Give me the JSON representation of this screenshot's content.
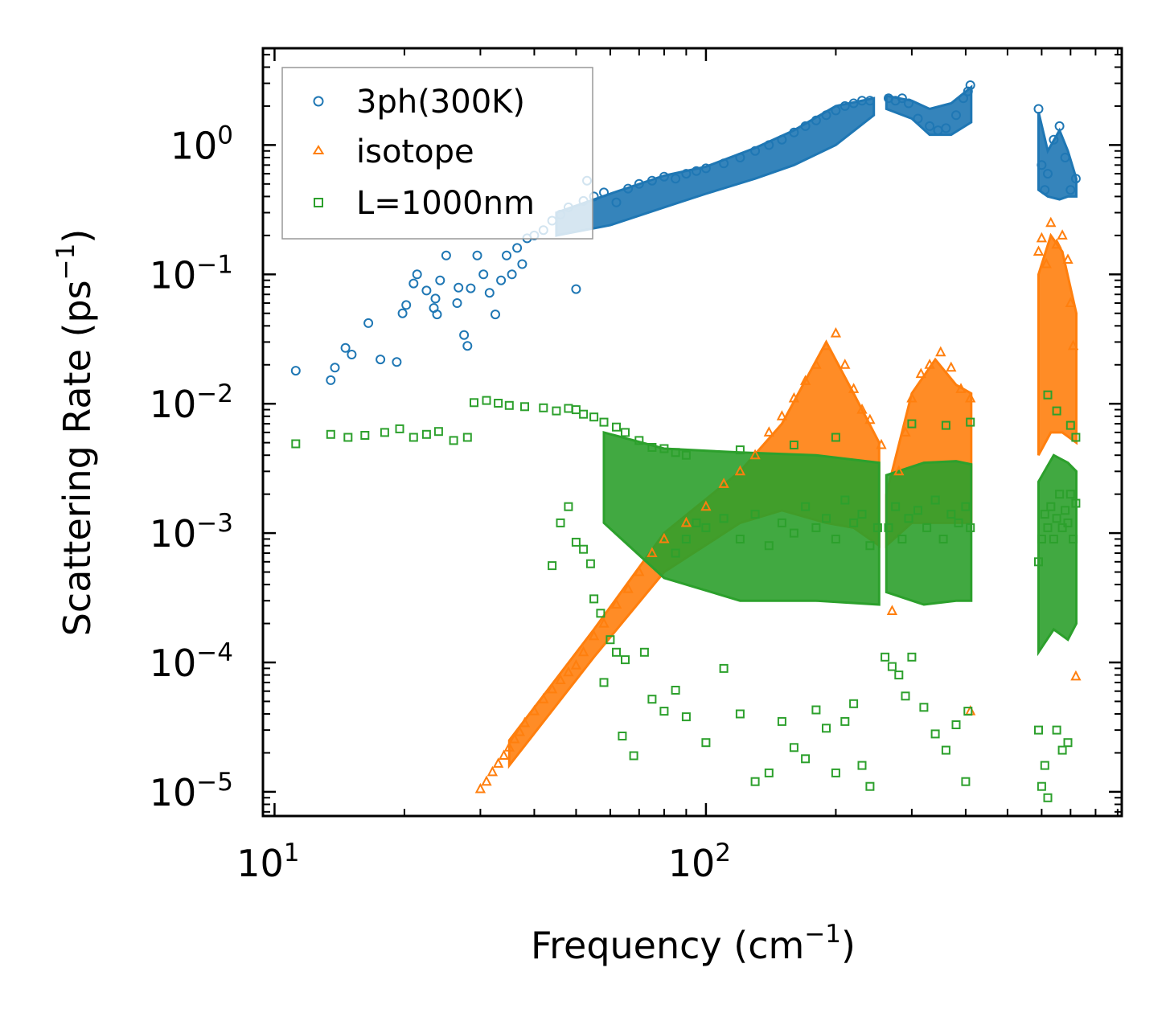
{
  "chart_data": {
    "type": "scatter",
    "xscale": "log",
    "yscale": "log",
    "xlim": [
      9.4,
      920
    ],
    "ylim": [
      6.5e-06,
      5.6
    ],
    "xlabel": {
      "text": "Frequency (cm",
      "sup": "−1",
      "close": ")"
    },
    "ylabel": {
      "text": "Scattering Rate (ps",
      "sup": "−1",
      "close": ")"
    },
    "x_ticks": [
      {
        "value": 10,
        "base": "10",
        "exp": "1"
      },
      {
        "value": 100,
        "base": "10",
        "exp": "2"
      }
    ],
    "y_ticks": [
      {
        "value": 1,
        "base": "10",
        "exp": "0"
      },
      {
        "value": 0.1,
        "base": "10",
        "exp": "−1"
      },
      {
        "value": 0.01,
        "base": "10",
        "exp": "−2"
      },
      {
        "value": 0.001,
        "base": "10",
        "exp": "−3"
      },
      {
        "value": 0.0001,
        "base": "10",
        "exp": "−4"
      },
      {
        "value": 1e-05,
        "base": "10",
        "exp": "−5"
      }
    ],
    "legend_position": "top-left",
    "series": [
      {
        "name": "3ph(300K)",
        "marker": "circle",
        "color": "#1f77b4",
        "points": [
          [
            11.2,
            0.018
          ],
          [
            13.5,
            0.0152
          ],
          [
            13.8,
            0.019
          ],
          [
            14.6,
            0.027
          ],
          [
            15.1,
            0.024
          ],
          [
            16.5,
            0.042
          ],
          [
            17.6,
            0.022
          ],
          [
            19.2,
            0.021
          ],
          [
            19.8,
            0.05
          ],
          [
            20.2,
            0.058
          ],
          [
            21,
            0.085
          ],
          [
            21.4,
            0.1
          ],
          [
            22.5,
            0.075
          ],
          [
            23.4,
            0.055
          ],
          [
            23.6,
            0.065
          ],
          [
            23.8,
            0.049
          ],
          [
            24.2,
            0.09
          ],
          [
            25,
            0.14
          ],
          [
            26.5,
            0.06
          ],
          [
            26.7,
            0.079
          ],
          [
            27.5,
            0.034
          ],
          [
            28,
            0.028
          ],
          [
            28.5,
            0.078
          ],
          [
            29.5,
            0.14
          ],
          [
            30.5,
            0.1
          ],
          [
            31.5,
            0.072
          ],
          [
            32.5,
            0.049
          ],
          [
            33.5,
            0.09
          ],
          [
            34.5,
            0.14
          ],
          [
            35.5,
            0.1
          ],
          [
            36.5,
            0.16
          ],
          [
            37.5,
            0.12
          ],
          [
            38.5,
            0.19
          ],
          [
            40,
            0.2
          ],
          [
            42,
            0.22
          ],
          [
            44,
            0.26
          ],
          [
            46,
            0.29
          ],
          [
            48,
            0.33
          ],
          [
            50,
            0.077
          ],
          [
            52,
            0.37
          ],
          [
            53,
            0.53
          ],
          [
            55,
            0.4
          ],
          [
            58,
            0.43
          ],
          [
            62,
            0.36
          ],
          [
            66,
            0.46
          ],
          [
            70,
            0.5
          ],
          [
            75,
            0.53
          ],
          [
            80,
            0.57
          ],
          [
            85,
            0.55
          ],
          [
            90,
            0.6
          ],
          [
            95,
            0.63
          ],
          [
            100,
            0.66
          ],
          [
            110,
            0.72
          ],
          [
            120,
            0.8
          ],
          [
            130,
            0.9
          ],
          [
            140,
            1
          ],
          [
            150,
            1.1
          ],
          [
            160,
            1.25
          ],
          [
            170,
            1.4
          ],
          [
            180,
            1.55
          ],
          [
            190,
            1.7
          ],
          [
            200,
            1.85
          ],
          [
            210,
            2
          ],
          [
            220,
            2.1
          ],
          [
            230,
            2.2
          ],
          [
            240,
            2.2
          ],
          [
            265,
            2.3
          ],
          [
            275,
            2.2
          ],
          [
            285,
            2.3
          ],
          [
            295,
            2.1
          ],
          [
            310,
            1.6
          ],
          [
            330,
            1.4
          ],
          [
            345,
            1.3
          ],
          [
            360,
            1.35
          ],
          [
            380,
            1.7
          ],
          [
            395,
            2.3
          ],
          [
            405,
            2.6
          ],
          [
            410,
            2.9
          ],
          [
            590,
            1.9
          ],
          [
            600,
            0.7
          ],
          [
            610,
            0.45
          ],
          [
            620,
            0.6
          ],
          [
            640,
            1.1
          ],
          [
            660,
            1.4
          ],
          [
            680,
            0.8
          ],
          [
            700,
            0.45
          ],
          [
            720,
            0.55
          ]
        ]
      },
      {
        "name": "isotope",
        "marker": "triangle",
        "color": "#ff7f0e",
        "points": [
          [
            30,
            1.05e-05
          ],
          [
            31,
            1.2e-05
          ],
          [
            32,
            1.42e-05
          ],
          [
            33,
            1.65e-05
          ],
          [
            34,
            1.9e-05
          ],
          [
            35,
            2.2e-05
          ],
          [
            36,
            2.55e-05
          ],
          [
            37,
            2.9e-05
          ],
          [
            38,
            3.4e-05
          ],
          [
            40,
            4.2e-05
          ],
          [
            42,
            5.2e-05
          ],
          [
            44,
            6.2e-05
          ],
          [
            46,
            7.3e-05
          ],
          [
            48,
            8.4e-05
          ],
          [
            50,
            9.5e-05
          ],
          [
            52,
            0.00012
          ],
          [
            55,
            0.00016
          ],
          [
            58,
            0.0002
          ],
          [
            62,
            0.00028
          ],
          [
            66,
            0.00037
          ],
          [
            70,
            0.0005
          ],
          [
            75,
            0.0007
          ],
          [
            80,
            0.0009
          ],
          [
            90,
            0.0012
          ],
          [
            100,
            0.0016
          ],
          [
            110,
            0.0024
          ],
          [
            120,
            0.003
          ],
          [
            130,
            0.004
          ],
          [
            140,
            0.006
          ],
          [
            150,
            0.008
          ],
          [
            160,
            0.011
          ],
          [
            170,
            0.015
          ],
          [
            180,
            0.02
          ],
          [
            190,
            0.028
          ],
          [
            200,
            0.035
          ],
          [
            210,
            0.02
          ],
          [
            220,
            0.013
          ],
          [
            230,
            0.009
          ],
          [
            240,
            0.0075
          ],
          [
            255,
            0.0048
          ],
          [
            270,
            0.00025
          ],
          [
            280,
            0.003
          ],
          [
            290,
            0.006
          ],
          [
            300,
            0.011
          ],
          [
            315,
            0.017
          ],
          [
            330,
            0.02
          ],
          [
            350,
            0.025
          ],
          [
            370,
            0.019
          ],
          [
            390,
            0.013
          ],
          [
            410,
            0.011
          ],
          [
            410,
            4.2e-05
          ],
          [
            590,
            0.15
          ],
          [
            600,
            0.19
          ],
          [
            615,
            0.12
          ],
          [
            630,
            0.25
          ],
          [
            650,
            0.17
          ],
          [
            670,
            0.2
          ],
          [
            690,
            0.13
          ],
          [
            700,
            0.06
          ],
          [
            710,
            0.028
          ],
          [
            720,
            7.8e-05
          ]
        ]
      },
      {
        "name": "L=1000nm",
        "marker": "square",
        "color": "#2ca02c",
        "points": [
          [
            11.2,
            0.0049
          ],
          [
            13.5,
            0.0058
          ],
          [
            14.8,
            0.0055
          ],
          [
            16.2,
            0.0057
          ],
          [
            18,
            0.006
          ],
          [
            19.5,
            0.0064
          ],
          [
            21,
            0.0055
          ],
          [
            22.5,
            0.0058
          ],
          [
            24,
            0.0061
          ],
          [
            26,
            0.0052
          ],
          [
            28,
            0.0055
          ],
          [
            29,
            0.0102
          ],
          [
            31,
            0.0106
          ],
          [
            33,
            0.0101
          ],
          [
            35,
            0.0097
          ],
          [
            38,
            0.0095
          ],
          [
            42,
            0.0093
          ],
          [
            45,
            0.0088
          ],
          [
            48,
            0.0092
          ],
          [
            50,
            0.009
          ],
          [
            52,
            0.0083
          ],
          [
            55,
            0.0079
          ],
          [
            58,
            0.0072
          ],
          [
            62,
            0.0066
          ],
          [
            65,
            0.006
          ],
          [
            70,
            0.0052
          ],
          [
            75,
            0.0046
          ],
          [
            80,
            0.0045
          ],
          [
            85,
            0.0042
          ],
          [
            90,
            0.004
          ],
          [
            46,
            0.0012
          ],
          [
            48,
            0.0016
          ],
          [
            50,
            0.00085
          ],
          [
            52,
            0.00075
          ],
          [
            54,
            0.00058
          ],
          [
            44,
            0.00056
          ],
          [
            55,
            0.00031
          ],
          [
            57,
            0.00024
          ],
          [
            60,
            0.00015
          ],
          [
            62,
            0.00012
          ],
          [
            65,
            0.000105
          ],
          [
            58,
            7e-05
          ],
          [
            64,
            2.7e-05
          ],
          [
            68,
            1.9e-05
          ],
          [
            72,
            0.00012
          ],
          [
            75,
            5.2e-05
          ],
          [
            80,
            4.2e-05
          ],
          [
            85,
            6.1e-05
          ],
          [
            90,
            3.8e-05
          ],
          [
            100,
            2.4e-05
          ],
          [
            110,
            9e-05
          ],
          [
            120,
            4e-05
          ],
          [
            130,
            1.2e-05
          ],
          [
            140,
            1.4e-05
          ],
          [
            150,
            3.5e-05
          ],
          [
            160,
            2.2e-05
          ],
          [
            170,
            1.8e-05
          ],
          [
            180,
            4.3e-05
          ],
          [
            190,
            3.1e-05
          ],
          [
            200,
            1.4e-05
          ],
          [
            210,
            3.5e-05
          ],
          [
            220,
            4.8e-05
          ],
          [
            230,
            1.6e-05
          ],
          [
            240,
            1.1e-05
          ],
          [
            260,
            0.00011
          ],
          [
            270,
            9.3e-05
          ],
          [
            280,
            8e-05
          ],
          [
            290,
            5.5e-05
          ],
          [
            300,
            0.00011
          ],
          [
            320,
            4.5e-05
          ],
          [
            340,
            2.8e-05
          ],
          [
            360,
            2.1e-05
          ],
          [
            380,
            3.3e-05
          ],
          [
            400,
            1.2e-05
          ],
          [
            405,
            4.2e-05
          ],
          [
            410,
            0.0072
          ],
          [
            300,
            0.007
          ],
          [
            360,
            0.0068
          ],
          [
            200,
            0.0055
          ],
          [
            160,
            0.0048
          ],
          [
            120,
            0.0044
          ],
          [
            85,
            0.0007
          ],
          [
            90,
            0.0009
          ],
          [
            95,
            0.0012
          ],
          [
            100,
            0.0011
          ],
          [
            110,
            0.0013
          ],
          [
            120,
            0.0009
          ],
          [
            130,
            0.0014
          ],
          [
            140,
            0.0008
          ],
          [
            150,
            0.0012
          ],
          [
            160,
            0.001
          ],
          [
            170,
            0.0016
          ],
          [
            180,
            0.0011
          ],
          [
            190,
            0.0013
          ],
          [
            200,
            0.0009
          ],
          [
            210,
            0.0018
          ],
          [
            220,
            0.0012
          ],
          [
            230,
            0.0014
          ],
          [
            240,
            0.0008
          ],
          [
            250,
            0.0011
          ],
          [
            265,
            0.0011
          ],
          [
            275,
            0.0016
          ],
          [
            285,
            0.0009
          ],
          [
            295,
            0.0013
          ],
          [
            310,
            0.0015
          ],
          [
            325,
            0.0011
          ],
          [
            340,
            0.0018
          ],
          [
            355,
            0.0009
          ],
          [
            370,
            0.0014
          ],
          [
            385,
            0.0012
          ],
          [
            400,
            0.0016
          ],
          [
            410,
            0.0011
          ],
          [
            590,
            0.0006
          ],
          [
            600,
            0.0009
          ],
          [
            610,
            0.0014
          ],
          [
            620,
            0.0011
          ],
          [
            630,
            0.0016
          ],
          [
            640,
            0.0009
          ],
          [
            650,
            0.0013
          ],
          [
            660,
            0.002
          ],
          [
            670,
            0.0011
          ],
          [
            680,
            0.0015
          ],
          [
            690,
            0.0012
          ],
          [
            700,
            0.002
          ],
          [
            710,
            0.0009
          ],
          [
            720,
            0.0017
          ],
          [
            590,
            3e-05
          ],
          [
            600,
            1.1e-05
          ],
          [
            610,
            1.6e-05
          ],
          [
            620,
            9e-06
          ],
          [
            650,
            3e-05
          ],
          [
            670,
            2.1e-05
          ],
          [
            690,
            2.4e-05
          ],
          [
            620,
            0.0117
          ],
          [
            650,
            0.0088
          ],
          [
            700,
            0.0068
          ],
          [
            720,
            0.0055
          ]
        ]
      }
    ]
  }
}
